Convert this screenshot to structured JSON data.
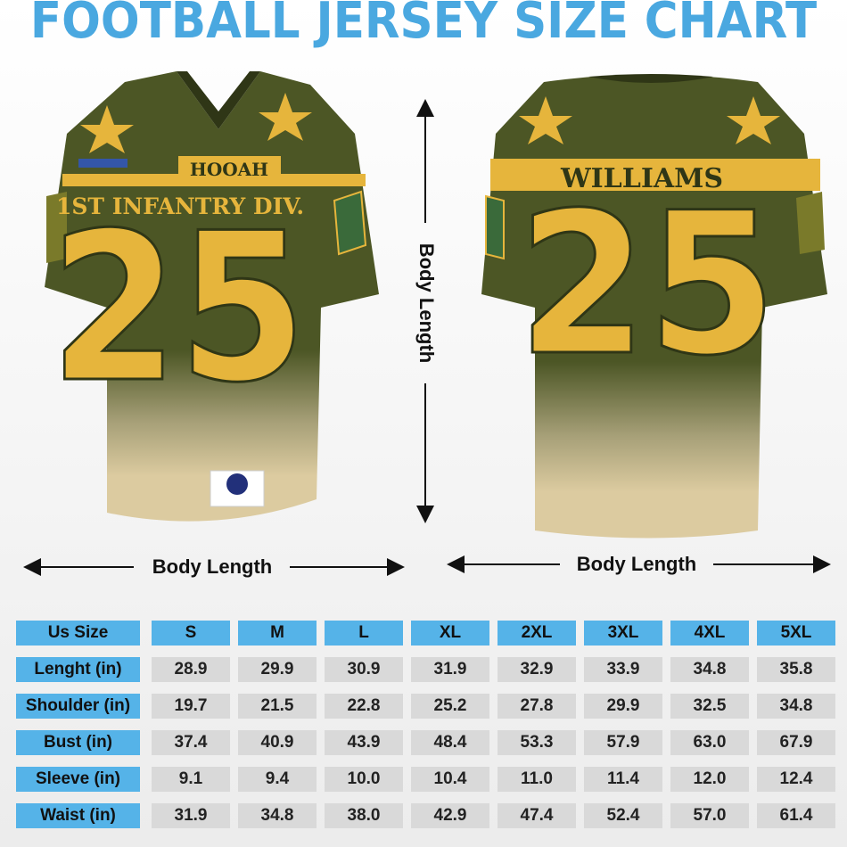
{
  "title": "FOOTBALL JERSEY SIZE CHART",
  "front_jersey": {
    "name_bar": "HOOAH",
    "unit": "1ST INFANTRY DIV.",
    "number": "25"
  },
  "back_jersey": {
    "name": "WILLIAMS",
    "number": "25"
  },
  "dimension_labels": {
    "vertical": "Body Length",
    "front_width": "Body Length",
    "back_width": "Body Length"
  },
  "table": {
    "header": [
      "Us Size",
      "S",
      "M",
      "L",
      "XL",
      "2XL",
      "3XL",
      "4XL",
      "5XL"
    ],
    "rows": [
      [
        "Lenght (in)",
        "28.9",
        "29.9",
        "30.9",
        "31.9",
        "32.9",
        "33.9",
        "34.8",
        "35.8"
      ],
      [
        "Shoulder (in)",
        "19.7",
        "21.5",
        "22.8",
        "25.2",
        "27.8",
        "29.9",
        "32.5",
        "34.8"
      ],
      [
        "Bust (in)",
        "37.4",
        "40.9",
        "43.9",
        "48.4",
        "53.3",
        "57.9",
        "63.0",
        "67.9"
      ],
      [
        "Sleeve (in)",
        "9.1",
        "9.4",
        "10.0",
        "10.4",
        "11.0",
        "11.4",
        "12.0",
        "12.4"
      ],
      [
        "Waist (in)",
        "31.9",
        "34.8",
        "38.0",
        "42.9",
        "47.4",
        "52.4",
        "57.0",
        "61.4"
      ]
    ]
  }
}
